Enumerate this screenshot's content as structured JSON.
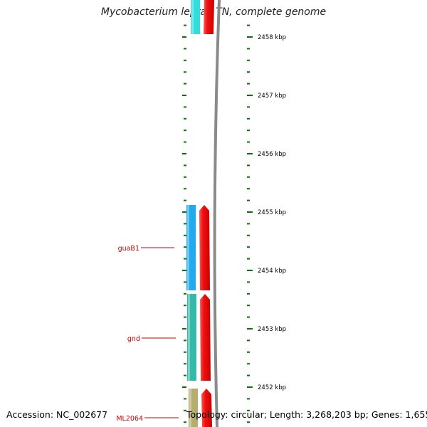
{
  "title": "Mycobacterium leprae TN, complete genome",
  "footer": {
    "accession": "Accession: NC_002677",
    "summary": "Topology: circular; Length: 3,268,203 bp; Genes: 1,655"
  },
  "colors": {
    "tick": "#007700",
    "backbone": "#8a8a8a",
    "gene_label": "#cc0000",
    "kbp_label": "#000000"
  },
  "scale": {
    "kbp_labels": [
      {
        "kbp": 2458,
        "text": "2458 kbp"
      },
      {
        "kbp": 2457,
        "text": "2457 kbp"
      },
      {
        "kbp": 2456,
        "text": "2456 kbp"
      },
      {
        "kbp": 2455,
        "text": "2455 kbp"
      },
      {
        "kbp": 2454,
        "text": "2454 kbp"
      },
      {
        "kbp": 2453,
        "text": "2453 kbp"
      },
      {
        "kbp": 2452,
        "text": "2452 kbp"
      }
    ]
  },
  "genes": [
    {
      "name": "",
      "color": "#33dddd"
    },
    {
      "name": "guaB1",
      "color": "#22aaee"
    },
    {
      "name": "gnd",
      "color": "#33bbaa"
    },
    {
      "name": "ML2064",
      "color": "#b5ad70"
    }
  ],
  "cds_color": "#ee1111"
}
